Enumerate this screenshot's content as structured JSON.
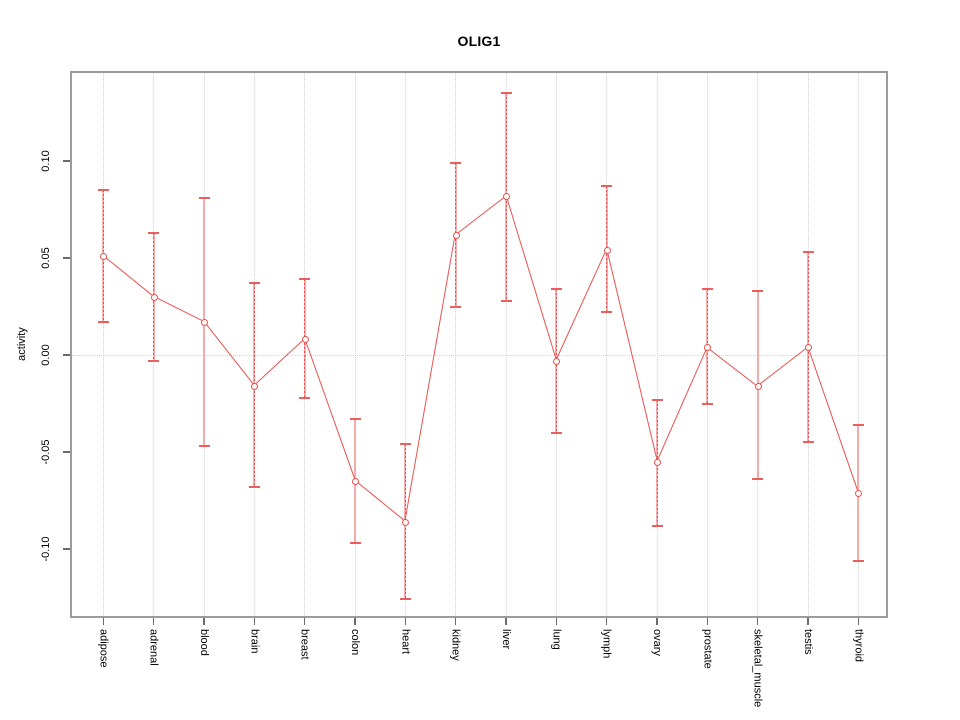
{
  "figure": {
    "title": "OLIG1",
    "ylabel": "activity",
    "background": "#ffffff"
  },
  "chart_data": {
    "type": "line",
    "title": "OLIG1",
    "xlabel": "",
    "ylabel": "activity",
    "categories": [
      "adipose",
      "adrenal",
      "blood",
      "brain",
      "breast",
      "colon",
      "heart",
      "kidney",
      "liver",
      "lung",
      "lymph",
      "ovary",
      "prostate",
      "skeletal_muscle",
      "testis",
      "thyroid"
    ],
    "series": [
      {
        "name": "activity",
        "values": [
          0.051,
          0.03,
          0.017,
          -0.016,
          0.008,
          -0.065,
          -0.086,
          0.062,
          0.082,
          -0.003,
          0.054,
          -0.055,
          0.004,
          -0.016,
          0.004,
          -0.071
        ],
        "ci_low": [
          0.017,
          -0.003,
          -0.047,
          -0.068,
          -0.022,
          -0.097,
          -0.126,
          0.025,
          0.028,
          -0.04,
          0.022,
          -0.088,
          -0.025,
          -0.064,
          -0.045,
          -0.106
        ],
        "ci_high": [
          0.085,
          0.063,
          0.081,
          0.037,
          0.039,
          -0.033,
          -0.046,
          0.099,
          0.135,
          0.034,
          0.087,
          -0.023,
          0.034,
          0.033,
          0.053,
          -0.036
        ]
      }
    ],
    "error_bar_styles": [
      "dashed",
      "dashed",
      "solid",
      "dashed",
      "dashed",
      "solid",
      "dashed",
      "dashed",
      "dashed",
      "dashed",
      "dashed",
      "dashed",
      "dashed",
      "solid",
      "dashed",
      "solid"
    ],
    "yticks": [
      0.1,
      0.05,
      0.0,
      -0.05,
      -0.1
    ],
    "ytick_labels": [
      "0.10",
      "0.05",
      "0.00",
      "-0.05",
      "-0.10"
    ],
    "ylim": [
      -0.135,
      0.146
    ],
    "grid": "vertical dotted line at each category; horizontal dotted line at y=0",
    "legend": "none",
    "marker": "open-circle",
    "colors": {
      "line": "#e8524f",
      "point_stroke": "#e8524f",
      "point_fill": "#ffffff",
      "whisker": "#f5abab",
      "whisker_dash": "#e05555",
      "cap": "#ea5e5e",
      "grid": "#d2d2d2",
      "box": "#9b9b9b",
      "tick": "#6b6b6b",
      "text": "#000000"
    }
  }
}
